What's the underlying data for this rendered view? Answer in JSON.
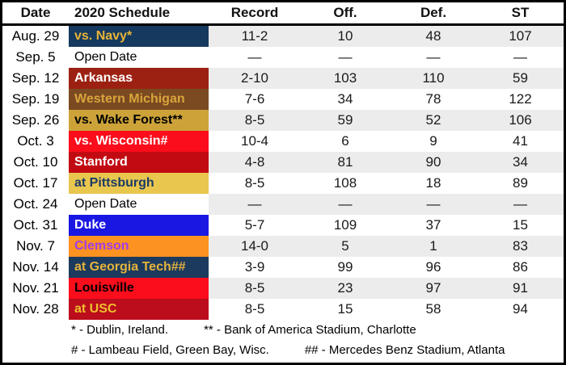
{
  "header": {
    "date": "Date",
    "schedule": "2020 Schedule",
    "record": "Record",
    "off": "Off.",
    "def": "Def.",
    "st": "ST"
  },
  "rows": [
    {
      "date": "Aug. 29",
      "opponent": "vs. Navy*",
      "record": "11-2",
      "off": "10",
      "def": "48",
      "st": "107",
      "bg": "#15395F",
      "fg": "#E8B437",
      "bold": true
    },
    {
      "date": "Sep. 5",
      "opponent": "Open Date",
      "record": "—",
      "off": "—",
      "def": "—",
      "st": "—",
      "bg": "#FFFFFF",
      "fg": "#000000",
      "bold": false
    },
    {
      "date": "Sep. 12",
      "opponent": "Arkansas",
      "record": "2-10",
      "off": "103",
      "def": "110",
      "st": "59",
      "bg": "#9D2112",
      "fg": "#FFFFFF",
      "bold": true
    },
    {
      "date": "Sep. 19",
      "opponent": "Western Michigan",
      "record": "7-6",
      "off": "34",
      "def": "78",
      "st": "122",
      "bg": "#7B4A21",
      "fg": "#D8A43C",
      "bold": true
    },
    {
      "date": "Sep. 26",
      "opponent": "vs. Wake Forest**",
      "record": "8-5",
      "off": "59",
      "def": "52",
      "st": "106",
      "bg": "#CDA339",
      "fg": "#000000",
      "bold": true
    },
    {
      "date": "Oct. 3",
      "opponent": "vs. Wisconsin#",
      "record": "10-4",
      "off": "6",
      "def": "9",
      "st": "41",
      "bg": "#FB0D1C",
      "fg": "#FFFFFF",
      "bold": true
    },
    {
      "date": "Oct. 10",
      "opponent": "Stanford",
      "record": "4-8",
      "off": "81",
      "def": "90",
      "st": "34",
      "bg": "#C20A12",
      "fg": "#FFFFFF",
      "bold": true
    },
    {
      "date": "Oct. 17",
      "opponent": "at Pittsburgh",
      "record": "8-5",
      "off": "108",
      "def": "18",
      "st": "89",
      "bg": "#E9C64E",
      "fg": "#1C3A66",
      "bold": true
    },
    {
      "date": "Oct. 24",
      "opponent": "Open Date",
      "record": "—",
      "off": "—",
      "def": "—",
      "st": "—",
      "bg": "#FFFFFF",
      "fg": "#000000",
      "bold": false
    },
    {
      "date": "Oct. 31",
      "opponent": "Duke",
      "record": "5-7",
      "off": "109",
      "def": "37",
      "st": "15",
      "bg": "#1A17E3",
      "fg": "#FFFFFF",
      "bold": true
    },
    {
      "date": "Nov. 7",
      "opponent": "Clemson",
      "record": "14-0",
      "off": "5",
      "def": "1",
      "st": "83",
      "bg": "#FB9222",
      "fg": "#A03CE8",
      "bold": true
    },
    {
      "date": "Nov. 14",
      "opponent": "at Georgia Tech##",
      "record": "3-9",
      "off": "99",
      "def": "96",
      "st": "86",
      "bg": "#1C3A5E",
      "fg": "#E5B33C",
      "bold": true
    },
    {
      "date": "Nov. 21",
      "opponent": "Louisville",
      "record": "8-5",
      "off": "23",
      "def": "97",
      "st": "91",
      "bg": "#FB0D1C",
      "fg": "#000000",
      "bold": true
    },
    {
      "date": "Nov. 28",
      "opponent": "at USC",
      "record": "8-5",
      "off": "15",
      "def": "58",
      "st": "94",
      "bg": "#BB0D1C",
      "fg": "#EFBF2E",
      "bold": true
    }
  ],
  "footnotes": {
    "line1_a": "* - Dublin, Ireland.",
    "line1_b": "** - Bank of America Stadium, Charlotte",
    "line2_a": "# - Lambeau Field, Green Bay, Wisc.",
    "line2_b": "## - Mercedes Benz Stadium, Atlanta"
  },
  "colors": {
    "stripe_gray": "#ECECEC",
    "stripe_white": "#FFFFFF",
    "border": "#000000"
  },
  "chart_data": {
    "type": "table",
    "title": "2020 Schedule",
    "columns": [
      "Date",
      "2020 Schedule",
      "Record",
      "Off.",
      "Def.",
      "ST"
    ],
    "rows": [
      [
        "Aug. 29",
        "vs. Navy*",
        "11-2",
        10,
        48,
        107
      ],
      [
        "Sep. 5",
        "Open Date",
        null,
        null,
        null,
        null
      ],
      [
        "Sep. 12",
        "Arkansas",
        "2-10",
        103,
        110,
        59
      ],
      [
        "Sep. 19",
        "Western Michigan",
        "7-6",
        34,
        78,
        122
      ],
      [
        "Sep. 26",
        "vs. Wake Forest**",
        "8-5",
        59,
        52,
        106
      ],
      [
        "Oct. 3",
        "vs. Wisconsin#",
        "10-4",
        6,
        9,
        41
      ],
      [
        "Oct. 10",
        "Stanford",
        "4-8",
        81,
        90,
        34
      ],
      [
        "Oct. 17",
        "at Pittsburgh",
        "8-5",
        108,
        18,
        89
      ],
      [
        "Oct. 24",
        "Open Date",
        null,
        null,
        null,
        null
      ],
      [
        "Oct. 31",
        "Duke",
        "5-7",
        109,
        37,
        15
      ],
      [
        "Nov. 7",
        "Clemson",
        "14-0",
        5,
        1,
        83
      ],
      [
        "Nov. 14",
        "at Georgia Tech##",
        "3-9",
        99,
        96,
        86
      ],
      [
        "Nov. 21",
        "Louisville",
        "8-5",
        23,
        97,
        91
      ],
      [
        "Nov. 28",
        "at USC",
        "8-5",
        15,
        58,
        94
      ]
    ],
    "notes": [
      "* - Dublin, Ireland.",
      "** - Bank of America Stadium, Charlotte",
      "# - Lambeau Field, Green Bay, Wisc.",
      "## - Mercedes Benz Stadium, Atlanta"
    ]
  }
}
